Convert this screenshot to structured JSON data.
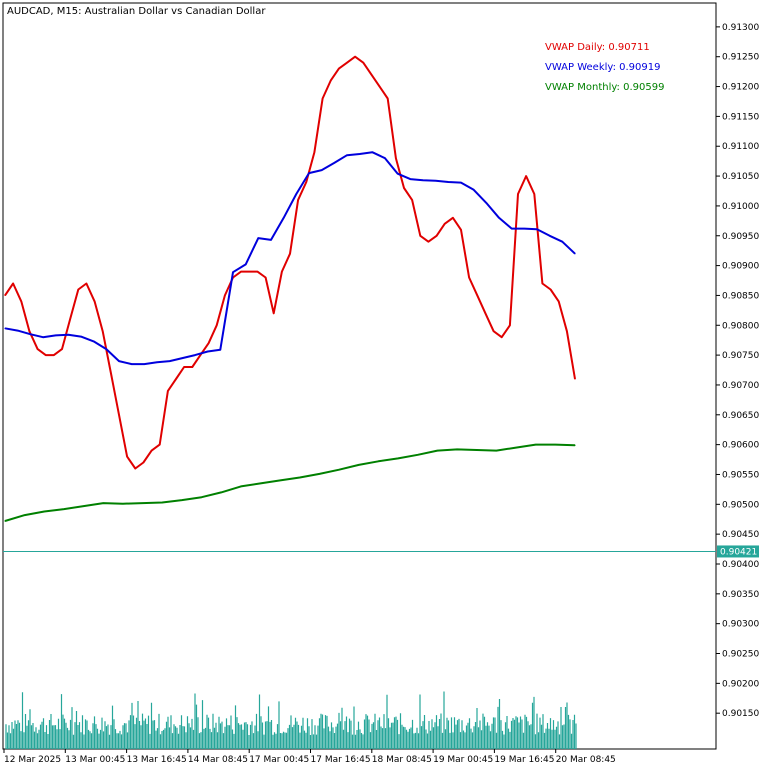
{
  "chart_data": {
    "type": "line",
    "title": "AUDCAD, M15:  Australian Dollar vs Canadian Dollar",
    "xlabel": "",
    "ylabel": "",
    "ylim": [
      0.9009,
      0.9134
    ],
    "y_ticks": [
      "0.91300",
      "0.91250",
      "0.91200",
      "0.91150",
      "0.91100",
      "0.91050",
      "0.91000",
      "0.90950",
      "0.90900",
      "0.90850",
      "0.90800",
      "0.90750",
      "0.90700",
      "0.90650",
      "0.90600",
      "0.90550",
      "0.90500",
      "0.90450",
      "0.90400",
      "0.90350",
      "0.90300",
      "0.90250",
      "0.90200",
      "0.90150"
    ],
    "x_ticks": [
      "12 Mar 2025",
      "13 Mar 00:45",
      "13 Mar 16:45",
      "14 Mar 08:45",
      "17 Mar 00:45",
      "17 Mar 16:45",
      "18 Mar 08:45",
      "19 Mar 00:45",
      "19 Mar 16:45",
      "20 Mar 08:45"
    ],
    "current_price": 0.90421,
    "current_price_label": "0.90421",
    "legend": [
      {
        "text": "VWAP Daily: 0.90711",
        "color": "#e00000"
      },
      {
        "text": "VWAP Weekly: 0.90919",
        "color": "#0000dd"
      },
      {
        "text": "VWAP Monthly: 0.90599",
        "color": "#008000"
      }
    ],
    "series": [
      {
        "name": "VWAP Daily",
        "color": "#e00000",
        "style": "dashed-at-session-breaks",
        "values": [
          0.9085,
          0.9087,
          0.9084,
          0.9079,
          0.9076,
          0.9075,
          0.9075,
          0.9076,
          0.9081,
          0.9086,
          0.9087,
          0.9084,
          0.9079,
          0.9072,
          0.9065,
          0.9058,
          0.9056,
          0.9057,
          0.9059,
          0.906,
          0.9069,
          0.9071,
          0.9073,
          0.9073,
          0.9075,
          0.9077,
          0.908,
          0.9085,
          0.9088,
          0.9089,
          0.9089,
          0.9089,
          0.9088,
          0.9082,
          0.9089,
          0.9092,
          0.9101,
          0.9104,
          0.9109,
          0.9118,
          0.9121,
          0.9123,
          0.9124,
          0.9125,
          0.9124,
          0.9122,
          0.912,
          0.9118,
          0.9108,
          0.9103,
          0.9101,
          0.9095,
          0.9094,
          0.9095,
          0.9097,
          0.9098,
          0.9096,
          0.9088,
          0.9085,
          0.9082,
          0.9079,
          0.9078,
          0.908,
          0.9102,
          0.9105,
          0.9102,
          0.9087,
          0.9086,
          0.9084,
          0.9079,
          0.9071
        ]
      },
      {
        "name": "VWAP Weekly",
        "color": "#0000dd",
        "values": [
          0.90795,
          0.90791,
          0.90785,
          0.9078,
          0.90783,
          0.90784,
          0.90781,
          0.90773,
          0.9076,
          0.9074,
          0.90735,
          0.90735,
          0.90738,
          0.9074,
          0.90745,
          0.9075,
          0.90756,
          0.90759,
          0.90889,
          0.90902,
          0.90946,
          0.90943,
          0.9098,
          0.9102,
          0.91055,
          0.9106,
          0.91072,
          0.91085,
          0.91087,
          0.9109,
          0.9108,
          0.91054,
          0.91045,
          0.91043,
          0.91042,
          0.9104,
          0.91039,
          0.91027,
          0.91005,
          0.9098,
          0.90962,
          0.90962,
          0.90961,
          0.9095,
          0.9094,
          0.9092
        ]
      },
      {
        "name": "VWAP Monthly",
        "color": "#008000",
        "values": [
          0.90472,
          0.90482,
          0.90488,
          0.90492,
          0.90497,
          0.90502,
          0.90501,
          0.90502,
          0.90503,
          0.90507,
          0.90512,
          0.9052,
          0.9053,
          0.90535,
          0.9054,
          0.90545,
          0.90551,
          0.90558,
          0.90566,
          0.90572,
          0.90577,
          0.90583,
          0.9059,
          0.90592,
          0.90591,
          0.9059,
          0.90595,
          0.906,
          0.906,
          0.90599
        ]
      }
    ]
  }
}
